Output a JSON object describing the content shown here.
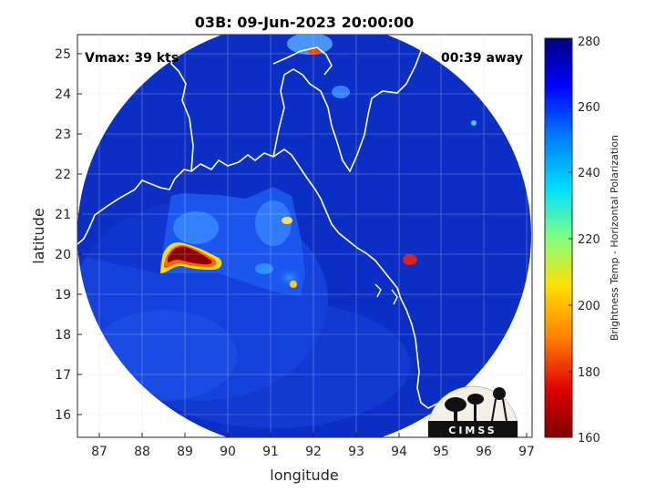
{
  "title": "03B: 09-Jun-2023 20:00:00",
  "annotations": {
    "vmax": "Vmax: 39 kts",
    "time_away": "00:39 away"
  },
  "axes": {
    "xlabel": "longitude",
    "ylabel": "latitude",
    "xticks": [
      "87",
      "88",
      "89",
      "90",
      "91",
      "92",
      "93",
      "94",
      "95",
      "96",
      "97"
    ],
    "yticks": [
      "25",
      "24",
      "23",
      "22",
      "21",
      "20",
      "19",
      "18",
      "17",
      "16"
    ]
  },
  "colorbar": {
    "label": "Brightness Temp - Horizontal Polarization",
    "ticks": [
      "280",
      "260",
      "240",
      "220",
      "200",
      "180",
      "160"
    ]
  },
  "logo": {
    "text": "CIMSS"
  },
  "colors": {
    "background_blue": "#0a2fc8",
    "cold_core": "#8b0000",
    "coast": "#ffffff"
  }
}
